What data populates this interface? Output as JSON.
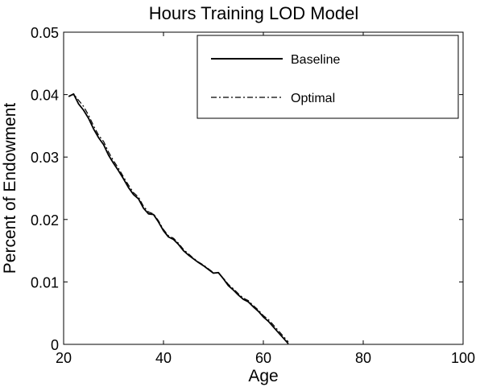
{
  "chart_data": {
    "type": "line",
    "title": "Hours Training LOD Model",
    "xlabel": "Age",
    "ylabel": "Percent of Endowment",
    "xlim": [
      20,
      100
    ],
    "ylim": [
      0,
      0.05
    ],
    "xticks": [
      20,
      40,
      60,
      80,
      100
    ],
    "xtick_labels": [
      "20",
      "40",
      "60",
      "80",
      "100"
    ],
    "yticks": [
      0,
      0.01,
      0.02,
      0.03,
      0.04,
      0.05
    ],
    "ytick_labels": [
      "0",
      "0.01",
      "0.02",
      "0.03",
      "0.04",
      "0.05"
    ],
    "grid": false,
    "legend_position": "top-right",
    "series": [
      {
        "name": "Baseline",
        "line_style": "solid",
        "color": "#000000",
        "x": [
          21,
          22,
          23,
          24,
          25,
          26,
          27,
          28,
          29,
          30,
          31,
          32,
          33,
          34,
          35,
          36,
          37,
          38,
          39,
          40,
          41,
          42,
          43,
          44,
          45,
          46,
          47,
          48,
          49,
          50,
          51,
          52,
          53,
          54,
          55,
          56,
          57,
          58,
          59,
          60,
          61,
          62,
          63,
          64,
          65
        ],
        "values": [
          0.0397,
          0.0401,
          0.0385,
          0.0375,
          0.0362,
          0.0345,
          0.0331,
          0.032,
          0.0303,
          0.029,
          0.0278,
          0.0265,
          0.0251,
          0.024,
          0.0233,
          0.0218,
          0.0209,
          0.0208,
          0.0196,
          0.0182,
          0.0172,
          0.0168,
          0.016,
          0.015,
          0.0143,
          0.0137,
          0.0131,
          0.0126,
          0.012,
          0.0114,
          0.0115,
          0.0105,
          0.0094,
          0.0087,
          0.0079,
          0.0072,
          0.0068,
          0.006,
          0.0053,
          0.0044,
          0.0037,
          0.0028,
          0.0019,
          0.001,
          0.0001
        ]
      },
      {
        "name": "Optimal",
        "line_style": "dash-dot",
        "color": "#000000",
        "x": [
          21,
          22,
          23,
          24,
          25,
          26,
          27,
          28,
          29,
          30,
          31,
          32,
          33,
          34,
          35,
          36,
          37,
          38,
          39,
          40,
          41,
          42,
          43,
          44,
          45,
          46,
          47,
          48,
          49,
          50,
          51,
          52,
          53,
          54,
          55,
          56,
          57,
          58,
          59,
          60,
          61,
          62,
          63,
          64,
          65
        ],
        "values": [
          0.0397,
          0.0401,
          0.0391,
          0.0381,
          0.0367,
          0.035,
          0.0335,
          0.0325,
          0.0308,
          0.0294,
          0.0282,
          0.0268,
          0.0255,
          0.0243,
          0.0236,
          0.0221,
          0.0212,
          0.0209,
          0.0198,
          0.0184,
          0.0174,
          0.017,
          0.0162,
          0.0152,
          0.0145,
          0.0138,
          0.0132,
          0.0127,
          0.0121,
          0.0115,
          0.0114,
          0.0106,
          0.0096,
          0.0089,
          0.0081,
          0.0074,
          0.007,
          0.0062,
          0.0055,
          0.0046,
          0.004,
          0.0031,
          0.0022,
          0.0013,
          0.0004
        ]
      }
    ]
  }
}
